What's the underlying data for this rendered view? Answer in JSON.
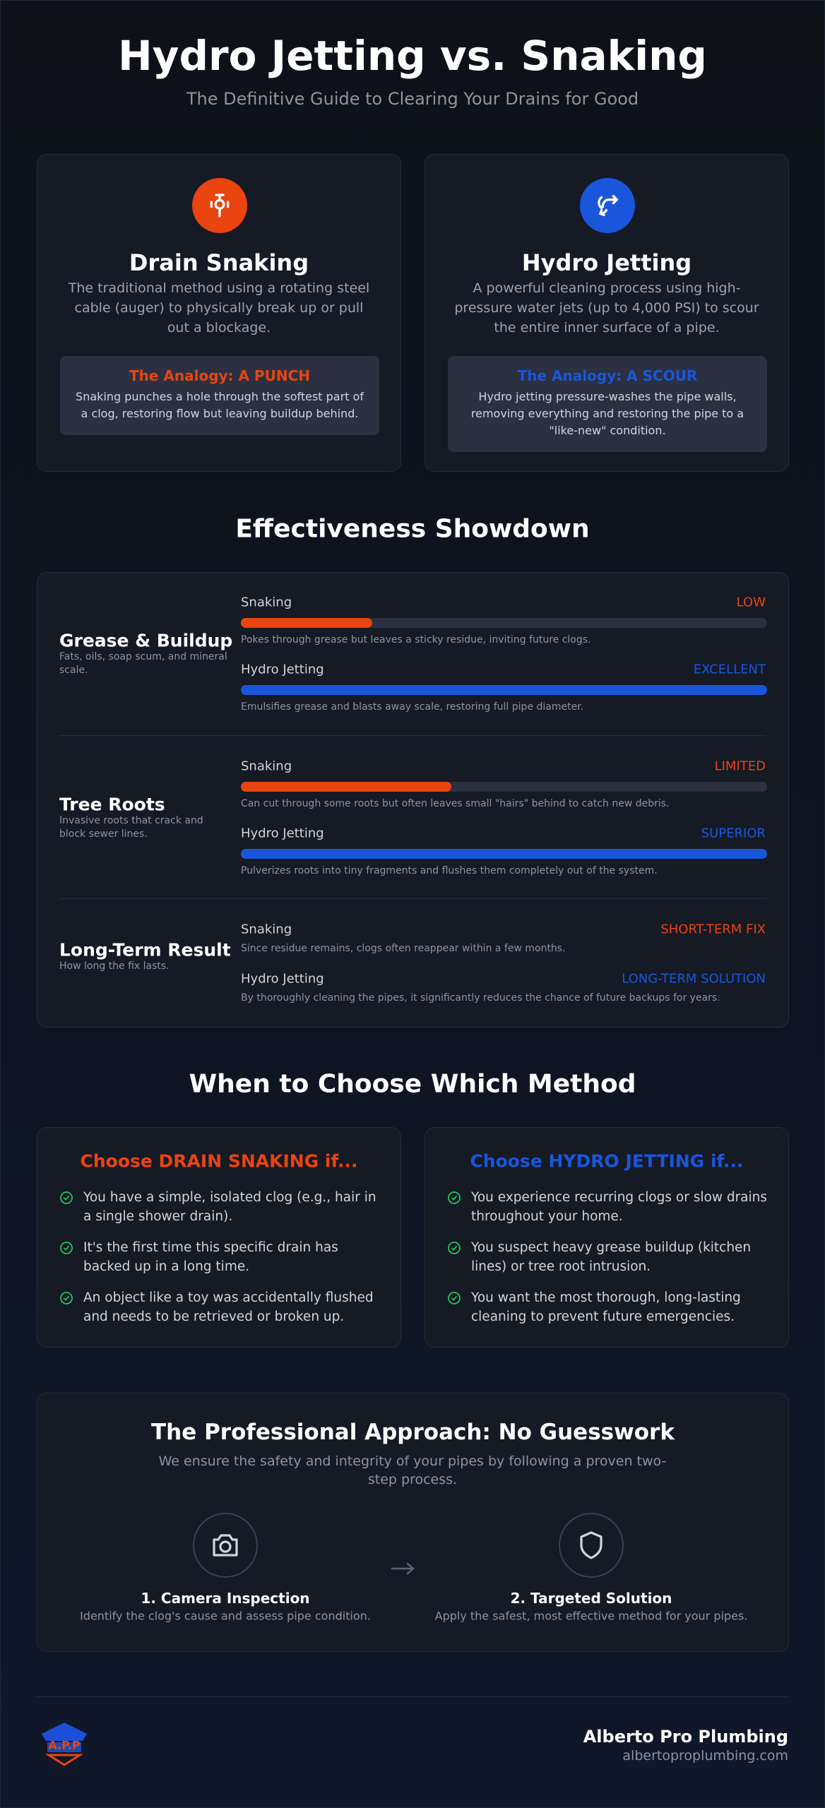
{
  "header": {
    "title": "Hydro Jetting vs. Snaking",
    "subtitle": "The Definitive Guide to Clearing Your Drains for Good"
  },
  "methods": [
    {
      "name": "Drain Snaking",
      "color": "#ea4410",
      "description": "The traditional method using a rotating steel cable (auger) to physically break up or pull out a blockage.",
      "analogy_title": "The Analogy: A PUNCH",
      "analogy_text": "Snaking punches a hole through the softest part of a clog, restoring flow but leaving buildup behind."
    },
    {
      "name": "Hydro Jetting",
      "color": "#1a56db",
      "description": "A powerful cleaning process using high-pressure water jets (up to 4,000 PSI) to scour the entire inner surface of a pipe.",
      "analogy_title": "The Analogy: A SCOUR",
      "analogy_text": "Hydro jetting pressure-washes the pipe walls, removing everything and restoring the pipe to a \"like-new\" condition."
    }
  ],
  "showdown": {
    "title": "Effectiveness Showdown",
    "rows": [
      {
        "label": "Grease & Buildup",
        "description": "Fats, oils, soap scum, and mineral scale.",
        "comparisons": [
          {
            "method": "Snaking",
            "rating": "LOW",
            "level": 25,
            "color": "#ea4410",
            "note": "Pokes through grease but leaves a sticky residue, inviting future clogs."
          },
          {
            "method": "Hydro Jetting",
            "rating": "EXCELLENT",
            "level": 100,
            "color": "#1a56db",
            "note": "Emulsifies grease and blasts away scale, restoring full pipe diameter."
          }
        ]
      },
      {
        "label": "Tree Roots",
        "description": "Invasive roots that crack and block sewer lines.",
        "comparisons": [
          {
            "method": "Snaking",
            "rating": "LIMITED",
            "level": 40,
            "color": "#ea4410",
            "note": "Can cut through some roots but often leaves small \"hairs\" behind to catch new debris."
          },
          {
            "method": "Hydro Jetting",
            "rating": "SUPERIOR",
            "level": 100,
            "color": "#1a56db",
            "note": "Pulverizes roots into tiny fragments and flushes them completely out of the system."
          }
        ]
      },
      {
        "label": "Long-Term Result",
        "description": "How long the fix lasts.",
        "comparisons": [
          {
            "method": "Snaking",
            "rating": "SHORT-TERM FIX",
            "color": "#ea4410",
            "note": "Since residue remains, clogs often reappear within a few months."
          },
          {
            "method": "Hydro Jetting",
            "rating": "LONG-TERM SOLUTION",
            "color": "#1a56db",
            "note": "By thoroughly cleaning the pipes, it significantly reduces the chance of future backups for years."
          }
        ]
      }
    ]
  },
  "choose": {
    "title": "When to Choose Which Method",
    "cards": [
      {
        "heading": "Choose DRAIN SNAKING if...",
        "color": "#ea4410",
        "items": [
          "You have a simple, isolated clog (e.g., hair in a single shower drain).",
          "It's the first time this specific drain has backed up in a long time.",
          "An object like a toy was accidentally flushed and needs to be retrieved or broken up."
        ]
      },
      {
        "heading": "Choose HYDRO JETTING if...",
        "color": "#1a56db",
        "items": [
          "You experience recurring clogs or slow drains throughout your home.",
          "You suspect heavy grease buildup (kitchen lines) or tree root intrusion.",
          "You want the most thorough, long-lasting cleaning to prevent future emergencies."
        ]
      }
    ]
  },
  "process": {
    "title": "The Professional Approach: No Guesswork",
    "description": "We ensure the safety and integrity of your pipes by following a proven two-step process.",
    "steps": [
      {
        "title": "1. Camera Inspection",
        "text": "Identify the clog's cause and assess pipe condition."
      },
      {
        "title": "2. Targeted Solution",
        "text": "Apply the safest, most effective method for your pipes."
      }
    ]
  },
  "footer": {
    "logo_text": "A.P.P",
    "company": "Alberto Pro Plumbing",
    "url": "albertoproplumbing.com"
  }
}
